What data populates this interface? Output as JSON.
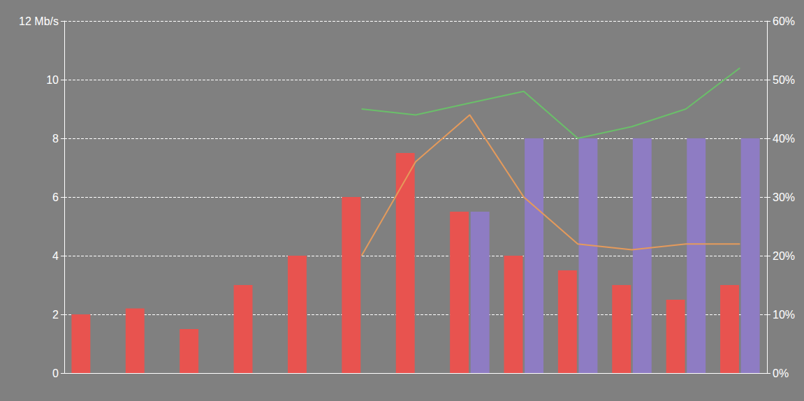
{
  "chart_data": {
    "type": "bar",
    "categories": [
      null,
      null,
      null,
      null,
      null,
      null,
      null,
      null,
      null,
      null,
      null,
      null,
      null
    ],
    "ylim": [
      0,
      12
    ],
    "yticks": [
      0,
      2,
      4,
      6,
      8,
      10,
      {
        "value": 12,
        "label": "12 Mb/s"
      }
    ],
    "y2lim": [
      0,
      60
    ],
    "y2ticks": [
      {
        "value": 0,
        "label": "0%"
      },
      {
        "value": 10,
        "label": "10%"
      },
      {
        "value": 20,
        "label": "20%"
      },
      {
        "value": 30,
        "label": "30%"
      },
      {
        "value": 40,
        "label": "40%"
      },
      {
        "value": 50,
        "label": "50%"
      },
      {
        "value": 60,
        "label": "60%"
      }
    ],
    "grid": true,
    "series": [
      {
        "type": "bar",
        "color": "#e8534f",
        "values": [
          2,
          2.2,
          1.5,
          3,
          4,
          6,
          7.5,
          5.5,
          4,
          3.5,
          3,
          2.5,
          3
        ]
      },
      {
        "type": "bar",
        "color": "#8e7cc3",
        "values": [
          null,
          null,
          null,
          null,
          null,
          null,
          null,
          5.5,
          8,
          8,
          8,
          8,
          8
        ]
      },
      {
        "type": "line",
        "axis": "y2",
        "color": "#e59a5b",
        "values": [
          null,
          null,
          null,
          null,
          null,
          20,
          36,
          44,
          30,
          22,
          21,
          22,
          22
        ]
      },
      {
        "type": "line",
        "axis": "y2",
        "color": "#6abf69",
        "values": [
          null,
          null,
          null,
          null,
          null,
          45,
          44,
          46,
          48,
          40,
          42,
          45,
          52
        ]
      }
    ]
  }
}
